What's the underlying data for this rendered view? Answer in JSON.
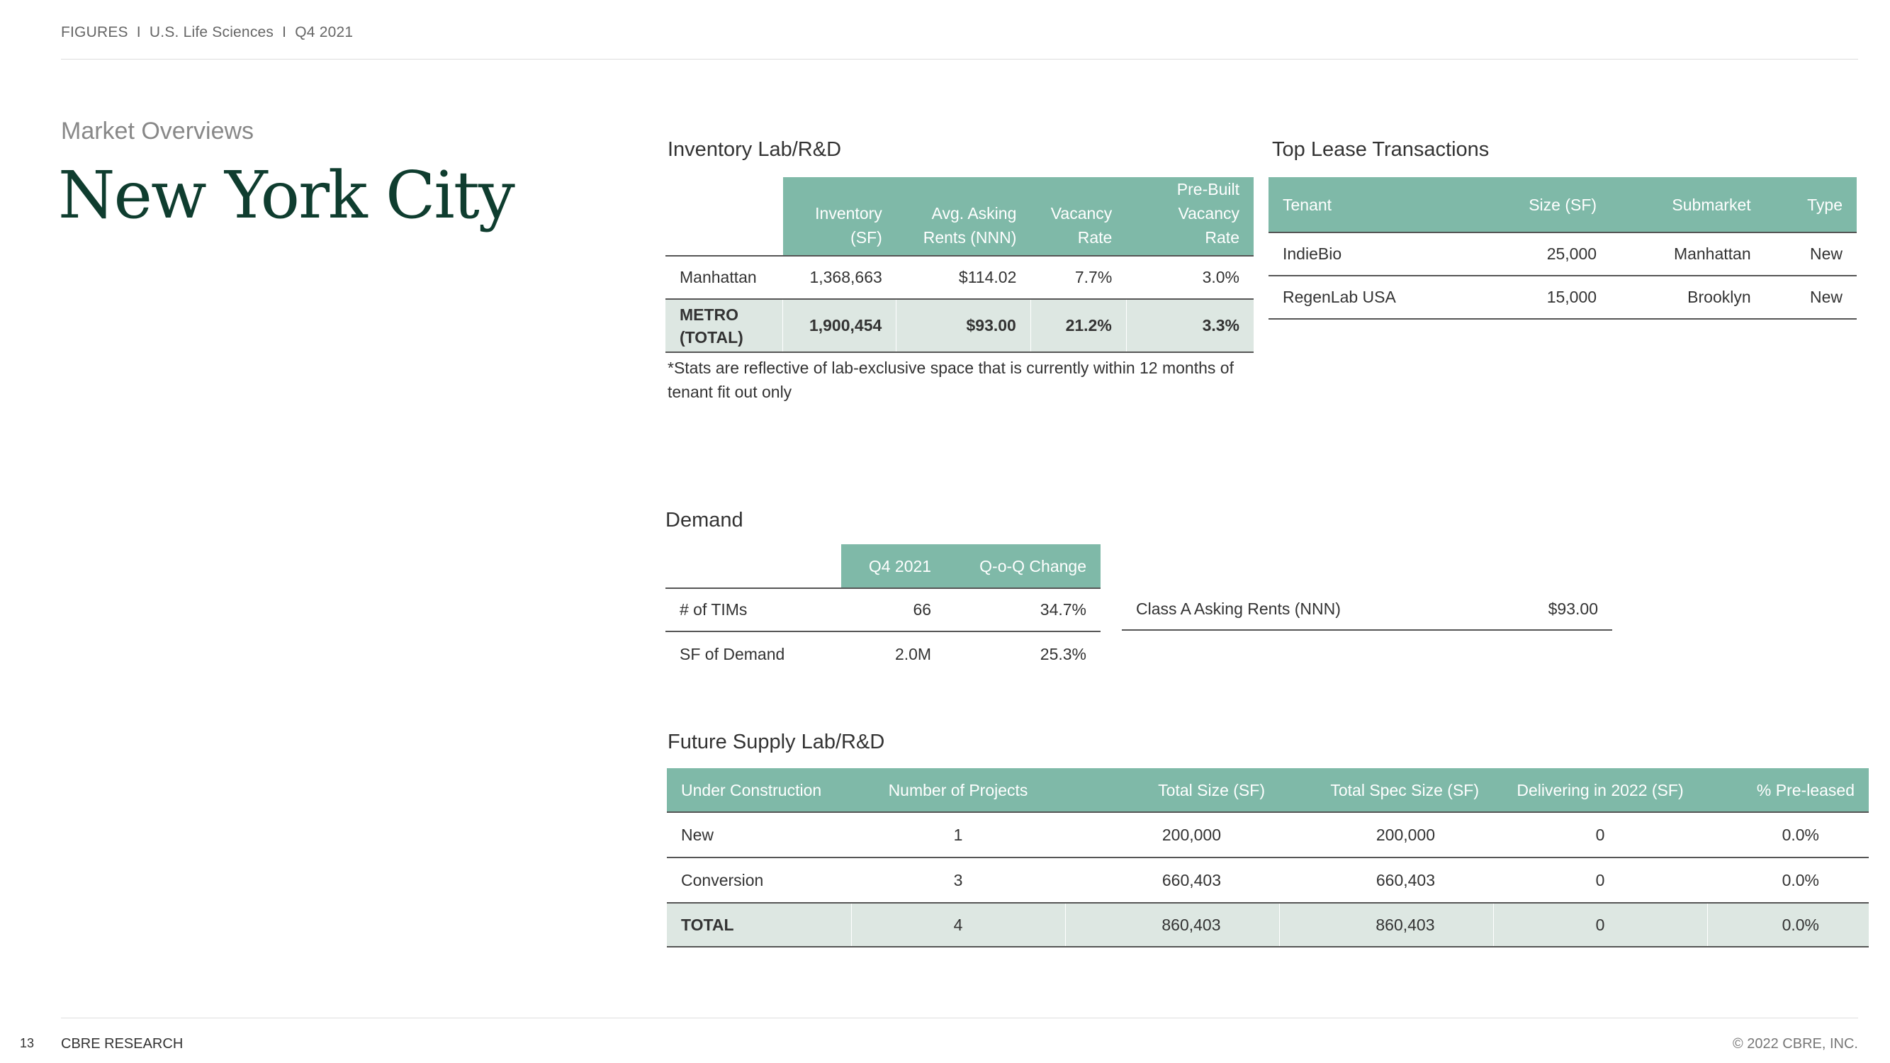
{
  "header": {
    "text": "FIGURES  I  U.S. Life Sciences  I  Q4 2021"
  },
  "section_label": "Market Overviews",
  "page_title": "New York City",
  "inventory": {
    "title": "Inventory Lab/R&D",
    "columns": [
      "",
      "Inventory (SF)",
      "Avg. Asking Rents (NNN)",
      "Vacancy Rate",
      "Pre-Built Vacancy Rate"
    ],
    "rows": [
      [
        "Manhattan",
        "1,368,663",
        "$114.02",
        "7.7%",
        "3.0%"
      ]
    ],
    "total": [
      "METRO (TOTAL)",
      "1,900,454",
      "$93.00",
      "21.2%",
      "3.3%"
    ],
    "footnote": "*Stats are reflective of lab-exclusive space that is currently within 12 months of tenant fit out only"
  },
  "leases": {
    "title": "Top Lease Transactions",
    "columns": [
      "Tenant",
      "Size (SF)",
      "Submarket",
      "Type"
    ],
    "rows": [
      [
        "IndieBio",
        "25,000",
        "Manhattan",
        "New"
      ],
      [
        "RegenLab USA",
        "15,000",
        "Brooklyn",
        "New"
      ]
    ]
  },
  "demand": {
    "title": "Demand",
    "columns": [
      "",
      "Q4 2021",
      "Q-o-Q Change"
    ],
    "rows": [
      [
        "# of TIMs",
        "66",
        "34.7%"
      ],
      [
        "SF of Demand",
        "2.0M",
        "25.3%"
      ]
    ],
    "class_a_label": "Class A Asking Rents (NNN)",
    "class_a_value": "$93.00"
  },
  "future": {
    "title": "Future Supply Lab/R&D",
    "columns": [
      "Under Construction",
      "Number of Projects",
      "Total Size (SF)",
      "Total Spec Size (SF)",
      "Delivering in 2022 (SF)",
      "% Pre-leased"
    ],
    "rows": [
      [
        "New",
        "1",
        "200,000",
        "200,000",
        "0",
        "0.0%"
      ],
      [
        "Conversion",
        "3",
        "660,403",
        "660,403",
        "0",
        "0.0%"
      ]
    ],
    "total": [
      "TOTAL",
      "4",
      "860,403",
      "860,403",
      "0",
      "0.0%"
    ]
  },
  "footer": {
    "page": "13",
    "brand": "CBRE RESEARCH",
    "copyright": "© 2022 CBRE, INC."
  },
  "colors": {
    "header_fill": "#7fb9a8",
    "total_fill": "#dde7e2",
    "title": "#0f3d2f"
  }
}
